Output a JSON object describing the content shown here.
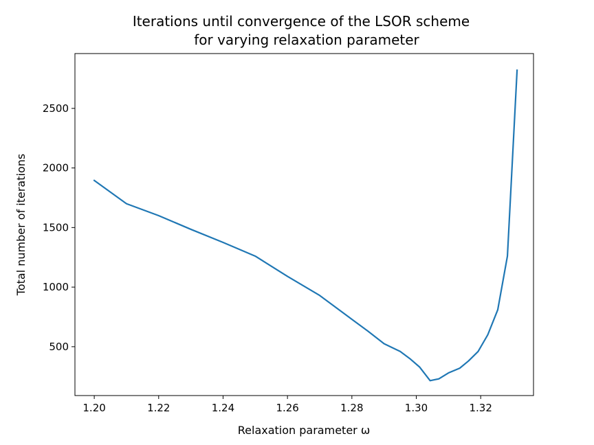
{
  "chart_data": {
    "type": "line",
    "title": "Iterations until convergence of the LSOR scheme",
    "subtitle": "for varying relaxation parameter",
    "xlabel": "Relaxation parameter ω",
    "ylabel": "Total number of iterations",
    "xlim": [
      1.194,
      1.3364
    ],
    "ylim": [
      90,
      2960
    ],
    "xticks": [
      1.2,
      1.22,
      1.24,
      1.26,
      1.28,
      1.3,
      1.32
    ],
    "xtick_labels": [
      "1.20",
      "1.22",
      "1.24",
      "1.26",
      "1.28",
      "1.30",
      "1.32"
    ],
    "yticks": [
      500,
      1000,
      1500,
      2000,
      2500
    ],
    "ytick_labels": [
      "500",
      "1000",
      "1500",
      "2000",
      "2500"
    ],
    "grid": false,
    "series": [
      {
        "color": "#1f77b4",
        "x": [
          1.2,
          1.21,
          1.22,
          1.23,
          1.24,
          1.25,
          1.26,
          1.27,
          1.28,
          1.285,
          1.29,
          1.295,
          1.298,
          1.301,
          1.3043,
          1.307,
          1.31,
          1.3135,
          1.3162,
          1.3192,
          1.3222,
          1.3253,
          1.3283,
          1.3313
        ],
        "y": [
          1895,
          1700,
          1600,
          1485,
          1375,
          1260,
          1090,
          930,
          730,
          630,
          525,
          460,
          400,
          330,
          215,
          230,
          280,
          320,
          380,
          460,
          600,
          810,
          1260,
          2820
        ]
      }
    ]
  }
}
